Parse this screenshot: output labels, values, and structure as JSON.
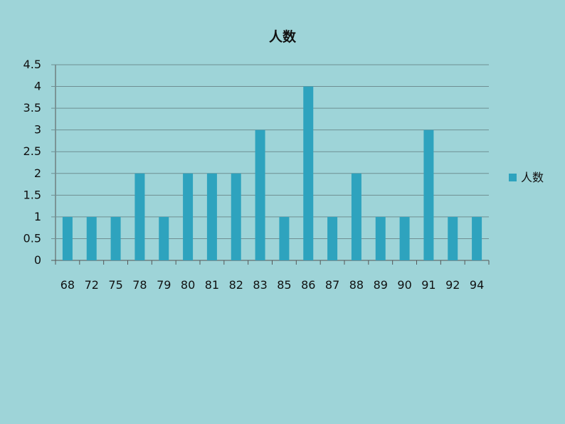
{
  "chart_data": {
    "type": "bar",
    "title": "人数",
    "xlabel": "",
    "ylabel": "",
    "categories": [
      "68",
      "72",
      "75",
      "78",
      "79",
      "80",
      "81",
      "82",
      "83",
      "85",
      "86",
      "87",
      "88",
      "89",
      "90",
      "91",
      "92",
      "94"
    ],
    "series": [
      {
        "name": "人数",
        "values": [
          1,
          1,
          1,
          2,
          1,
          2,
          2,
          2,
          3,
          1,
          4,
          1,
          2,
          1,
          1,
          3,
          1,
          1
        ],
        "color": "#2ea3be"
      }
    ],
    "ylim": [
      0,
      4.5
    ],
    "yticks": [
      "0",
      "0.5",
      "1",
      "1.5",
      "2",
      "2.5",
      "3",
      "3.5",
      "4",
      "4.5"
    ],
    "grid": true,
    "legend_position": "right"
  },
  "colors": {
    "background": "#9ed4d8",
    "gridline": "#6f8f92",
    "axis": "#555555"
  }
}
